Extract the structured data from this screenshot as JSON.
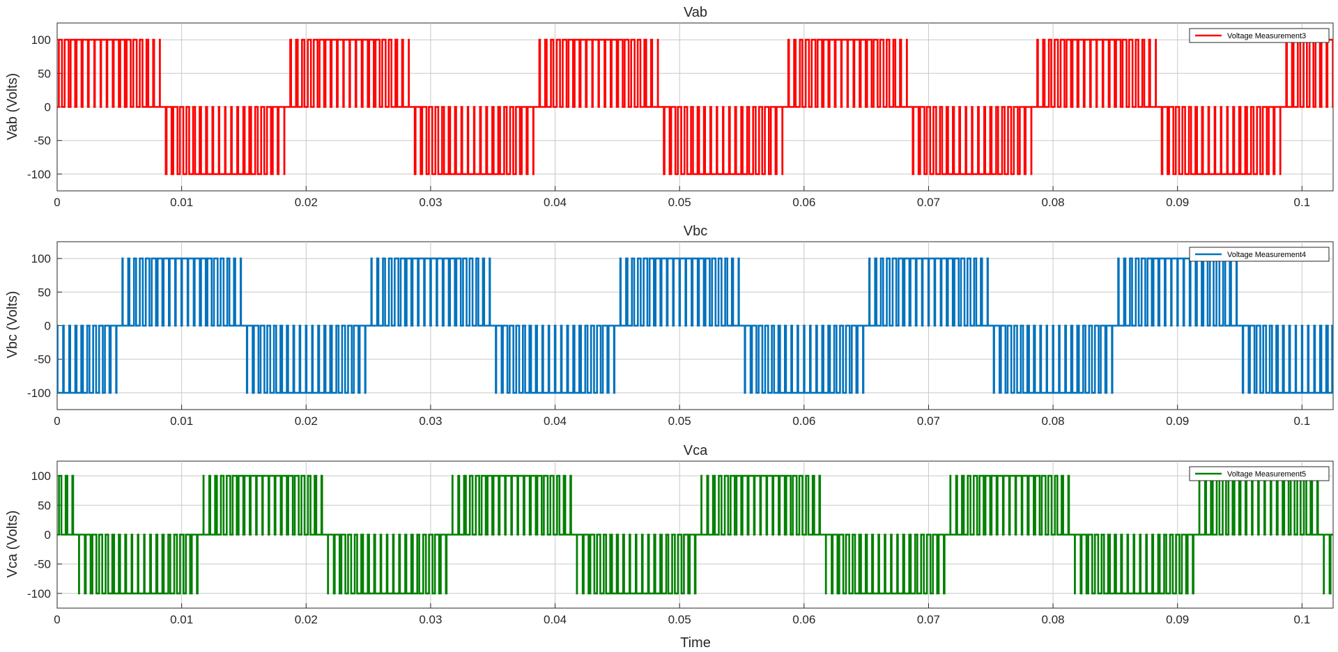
{
  "figure": {
    "xlabel": "Time"
  },
  "chart_data": [
    {
      "type": "line",
      "title": "Vab",
      "xlabel": "",
      "ylabel": "Vab (Volts)",
      "xlim": [
        0,
        0.1025
      ],
      "ylim": [
        -125,
        125
      ],
      "xticks": [
        0,
        0.01,
        0.02,
        0.03,
        0.04,
        0.05,
        0.06,
        0.07,
        0.08,
        0.09,
        0.1
      ],
      "xtick_labels": [
        "0",
        "0.01",
        "0.02",
        "0.03",
        "0.04",
        "0.05",
        "0.06",
        "0.07",
        "0.08",
        "0.09",
        "0.1"
      ],
      "yticks": [
        -100,
        -50,
        0,
        50,
        100
      ],
      "ytick_labels": [
        "-100",
        "-50",
        "0",
        "50",
        "100"
      ],
      "grid": true,
      "legend_position": "top-right",
      "series": [
        {
          "name": "Voltage Measurement3",
          "color": "#ff0000",
          "waveform": {
            "kind": "pwm-three-level",
            "amplitude": 100,
            "frequency_hz": 50,
            "phase_deg": 30,
            "carrier_hz": 1000
          }
        }
      ]
    },
    {
      "type": "line",
      "title": "Vbc",
      "xlabel": "",
      "ylabel": "Vbc (Volts)",
      "xlim": [
        0,
        0.1025
      ],
      "ylim": [
        -125,
        125
      ],
      "xticks": [
        0,
        0.01,
        0.02,
        0.03,
        0.04,
        0.05,
        0.06,
        0.07,
        0.08,
        0.09,
        0.1
      ],
      "xtick_labels": [
        "0",
        "0.01",
        "0.02",
        "0.03",
        "0.04",
        "0.05",
        "0.06",
        "0.07",
        "0.08",
        "0.09",
        "0.1"
      ],
      "yticks": [
        -100,
        -50,
        0,
        50,
        100
      ],
      "ytick_labels": [
        "-100",
        "-50",
        "0",
        "50",
        "100"
      ],
      "grid": true,
      "legend_position": "top-right",
      "series": [
        {
          "name": "Voltage Measurement4",
          "color": "#0072bd",
          "waveform": {
            "kind": "pwm-three-level",
            "amplitude": 100,
            "frequency_hz": 50,
            "phase_deg": -90,
            "carrier_hz": 1000
          }
        }
      ]
    },
    {
      "type": "line",
      "title": "Vca",
      "xlabel": "",
      "ylabel": "Vca (Volts)",
      "xlim": [
        0,
        0.1025
      ],
      "ylim": [
        -125,
        125
      ],
      "xticks": [
        0,
        0.01,
        0.02,
        0.03,
        0.04,
        0.05,
        0.06,
        0.07,
        0.08,
        0.09,
        0.1
      ],
      "xtick_labels": [
        "0",
        "0.01",
        "0.02",
        "0.03",
        "0.04",
        "0.05",
        "0.06",
        "0.07",
        "0.08",
        "0.09",
        "0.1"
      ],
      "yticks": [
        -100,
        -50,
        0,
        50,
        100
      ],
      "ytick_labels": [
        "-100",
        "-50",
        "0",
        "50",
        "100"
      ],
      "grid": true,
      "legend_position": "top-right",
      "series": [
        {
          "name": "Voltage Measurement5",
          "color": "#008000",
          "waveform": {
            "kind": "pwm-three-level",
            "amplitude": 100,
            "frequency_hz": 50,
            "phase_deg": 150,
            "carrier_hz": 1000
          }
        }
      ]
    }
  ]
}
